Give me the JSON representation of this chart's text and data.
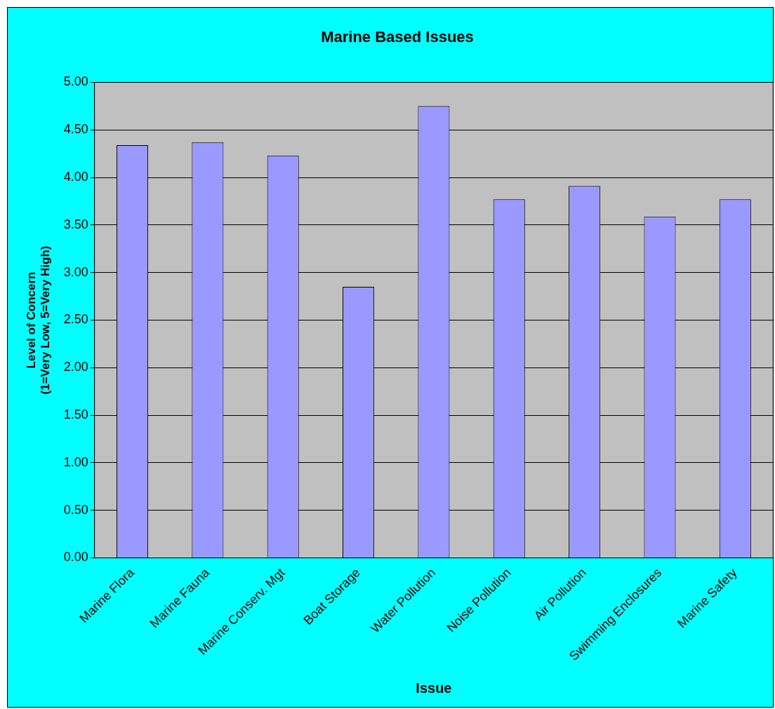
{
  "chart_data": {
    "type": "bar",
    "title": "Marine Based Issues",
    "xlabel": "Issue",
    "ylabel": "Level of Concern\n(1=Very Low, 5=Very High)",
    "categories": [
      "Marine Flora",
      "Marine Fauna",
      "Marine Conserv. Mgt",
      "Boat Storage",
      "Water Pollution",
      "Noise Pollution",
      "Air Pollution",
      "Swimming Enclosures",
      "Marine Safety"
    ],
    "values": [
      4.34,
      4.37,
      4.23,
      2.85,
      4.75,
      3.77,
      3.91,
      3.59,
      3.77
    ],
    "color": "#9999ff",
    "ylim": [
      0,
      5
    ],
    "yticks": [
      {
        "value": 0,
        "label": "0.00"
      },
      {
        "value": 0.5,
        "label": "0.50"
      },
      {
        "value": 1,
        "label": "1.00"
      },
      {
        "value": 1.5,
        "label": "1.50"
      },
      {
        "value": 2,
        "label": "2.00"
      },
      {
        "value": 2.5,
        "label": "2.50"
      },
      {
        "value": 3,
        "label": "3.00"
      },
      {
        "value": 3.5,
        "label": "3.50"
      },
      {
        "value": 4,
        "label": "4.00"
      },
      {
        "value": 4.5,
        "label": "4.50"
      },
      {
        "value": 5,
        "label": "5.00"
      }
    ],
    "grid": "y"
  }
}
